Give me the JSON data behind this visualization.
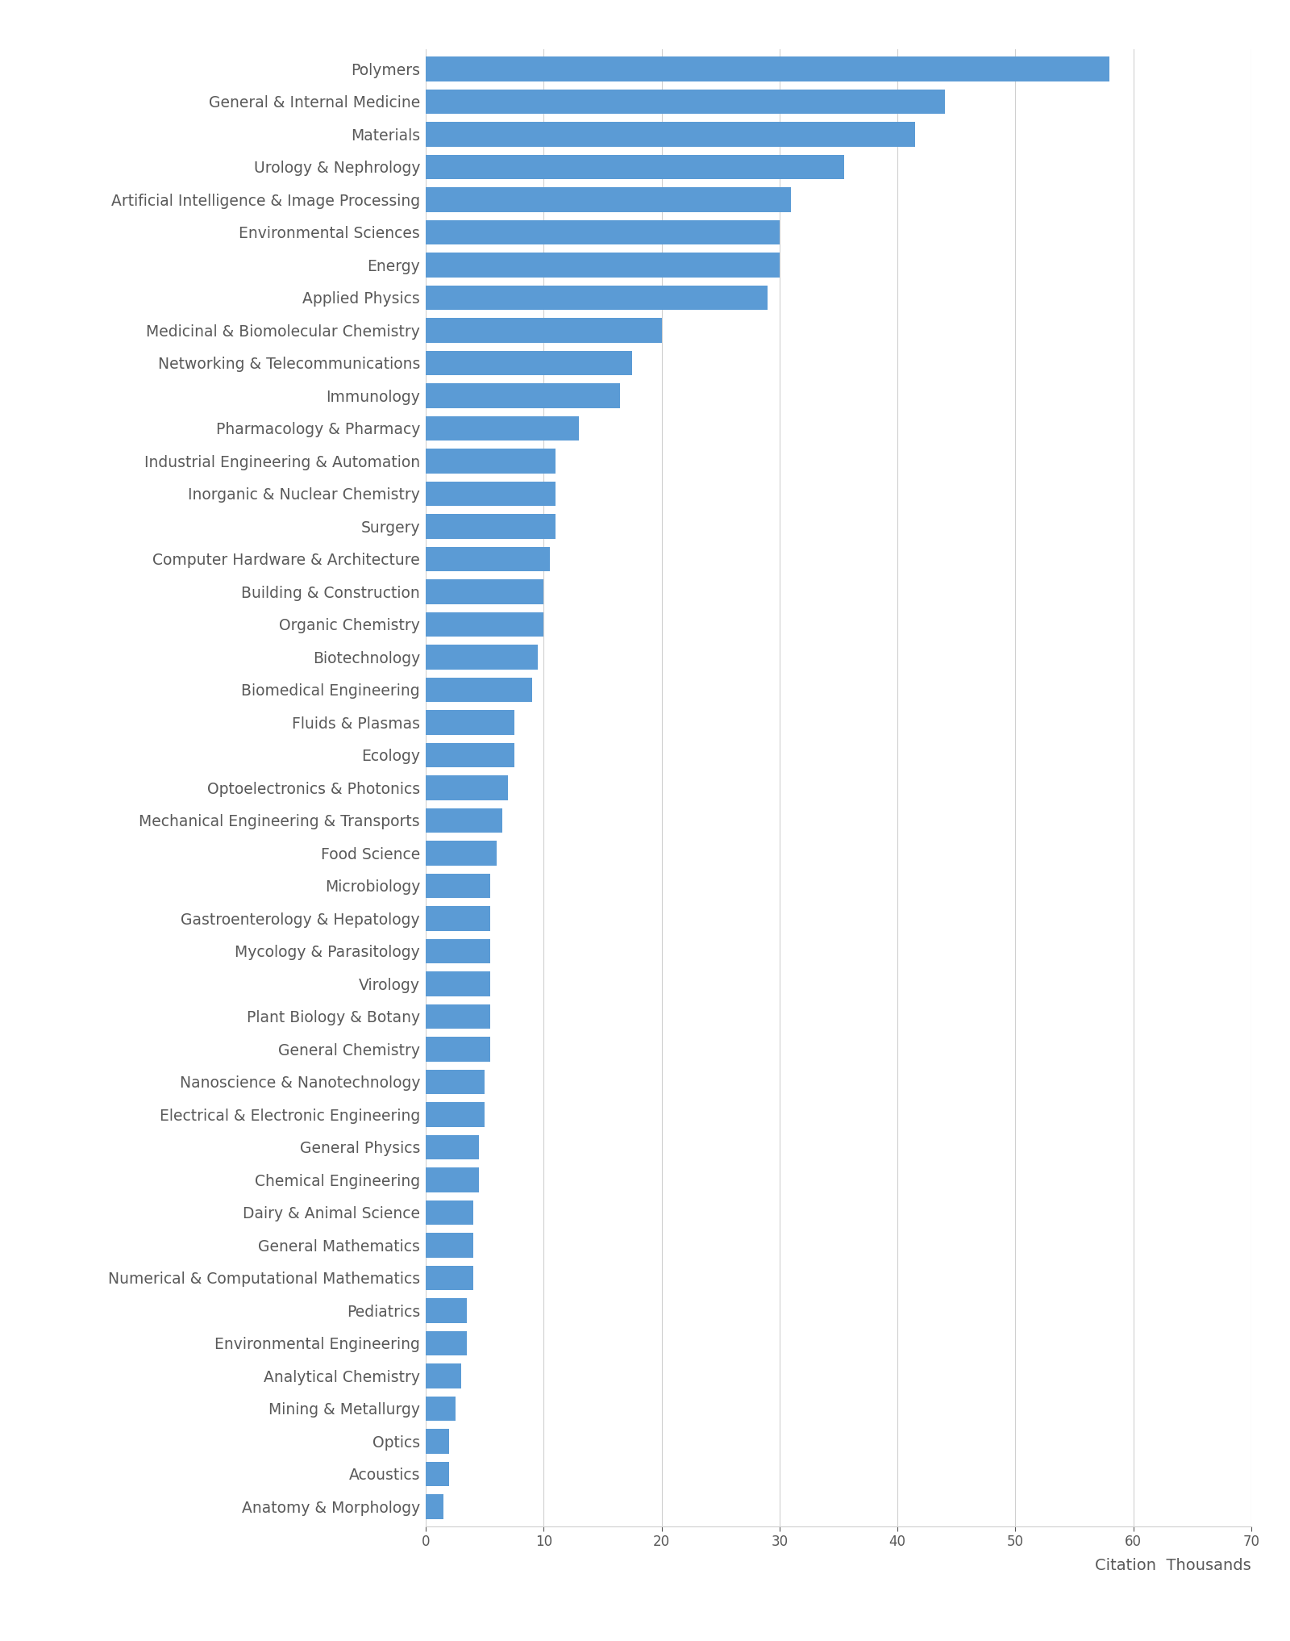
{
  "categories": [
    "Polymers",
    "General & Internal Medicine",
    "Materials",
    "Urology & Nephrology",
    "Artificial Intelligence & Image Processing",
    "Environmental Sciences",
    "Energy",
    "Applied Physics",
    "Medicinal & Biomolecular Chemistry",
    "Networking & Telecommunications",
    "Immunology",
    "Pharmacology & Pharmacy",
    "Industrial Engineering & Automation",
    "Inorganic & Nuclear Chemistry",
    "Surgery",
    "Computer Hardware & Architecture",
    "Building & Construction",
    "Organic Chemistry",
    "Biotechnology",
    "Biomedical Engineering",
    "Fluids & Plasmas",
    "Ecology",
    "Optoelectronics & Photonics",
    "Mechanical Engineering & Transports",
    "Food Science",
    "Microbiology",
    "Gastroenterology & Hepatology",
    "Mycology & Parasitology",
    "Virology",
    "Plant Biology & Botany",
    "General Chemistry",
    "Nanoscience & Nanotechnology",
    "Electrical & Electronic Engineering",
    "General Physics",
    "Chemical Engineering",
    "Dairy & Animal Science",
    "General Mathematics",
    "Numerical & Computational Mathematics",
    "Pediatrics",
    "Environmental Engineering",
    "Analytical Chemistry",
    "Mining & Metallurgy",
    "Optics",
    "Acoustics",
    "Anatomy & Morphology"
  ],
  "values": [
    58.0,
    44.0,
    41.5,
    35.5,
    31.0,
    30.0,
    30.0,
    29.0,
    20.0,
    17.5,
    16.5,
    13.0,
    11.0,
    11.0,
    11.0,
    10.5,
    10.0,
    10.0,
    9.5,
    9.0,
    7.5,
    7.5,
    7.0,
    6.5,
    6.0,
    5.5,
    5.5,
    5.5,
    5.5,
    5.5,
    5.5,
    5.0,
    5.0,
    4.5,
    4.5,
    4.0,
    4.0,
    4.0,
    3.5,
    3.5,
    3.0,
    2.5,
    2.0,
    2.0,
    1.5
  ],
  "bar_color": "#5b9bd5",
  "background_color": "#ffffff",
  "xlabel": "Citation  Thousands",
  "xlim": [
    0,
    70
  ],
  "xticks": [
    0,
    10,
    20,
    30,
    40,
    50,
    60,
    70
  ],
  "grid_color": "#d0d0d0",
  "text_color": "#595959",
  "bar_height": 0.75,
  "label_fontsize": 13.5,
  "tick_fontsize": 12,
  "xlabel_fontsize": 14
}
